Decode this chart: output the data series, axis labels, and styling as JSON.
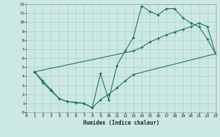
{
  "xlabel": "Humidex (Indice chaleur)",
  "bg_color": "#cce8e4",
  "grid_color": "#aaccca",
  "line_color": "#1a6e60",
  "xlim": [
    0,
    23
  ],
  "ylim": [
    0,
    12
  ],
  "xticks": [
    0,
    1,
    2,
    3,
    4,
    5,
    6,
    7,
    8,
    9,
    10,
    11,
    12,
    13,
    14,
    15,
    16,
    17,
    18,
    19,
    20,
    21,
    22,
    23
  ],
  "yticks": [
    0,
    1,
    2,
    3,
    4,
    5,
    6,
    7,
    8,
    9,
    10,
    11,
    12
  ],
  "line1_x": [
    1,
    2,
    3,
    4,
    5,
    6,
    7,
    8,
    9,
    10,
    11,
    12,
    13,
    14,
    15,
    16,
    17,
    18,
    19,
    20,
    21,
    22,
    23
  ],
  "line1_y": [
    4.5,
    3.5,
    2.5,
    1.5,
    1.2,
    1.1,
    1.0,
    0.5,
    4.3,
    1.4,
    5.2,
    6.8,
    8.3,
    11.8,
    11.2,
    10.8,
    11.5,
    11.5,
    10.5,
    9.9,
    9.5,
    8.1,
    6.5
  ],
  "line2_x": [
    1,
    13,
    14,
    15,
    16,
    17,
    18,
    19,
    20,
    21,
    22,
    23
  ],
  "line2_y": [
    4.5,
    6.8,
    7.2,
    7.8,
    8.2,
    8.6,
    8.9,
    9.2,
    9.5,
    9.9,
    9.5,
    6.5
  ],
  "line3_x": [
    1,
    2,
    3,
    4,
    5,
    6,
    7,
    8,
    9,
    10,
    11,
    12,
    13,
    23
  ],
  "line3_y": [
    4.5,
    3.3,
    2.4,
    1.5,
    1.2,
    1.1,
    1.0,
    0.5,
    1.4,
    2.0,
    2.7,
    3.5,
    4.2,
    6.5
  ]
}
